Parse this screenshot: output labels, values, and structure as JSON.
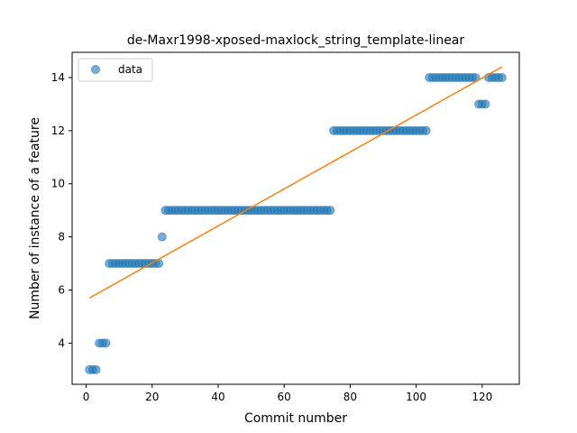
{
  "chart_data": {
    "type": "scatter",
    "title": "de-Maxr1998-xposed-maxlock_string_template-linear",
    "xlabel": "Commit number",
    "ylabel": "Number of instance of a feature",
    "xlim": [
      -4.25,
      131.25
    ],
    "ylim": [
      2.45,
      14.95
    ],
    "x_ticks": [
      0,
      20,
      40,
      60,
      80,
      100,
      120
    ],
    "y_ticks": [
      4,
      6,
      8,
      10,
      12,
      14
    ],
    "legend": {
      "placement": "top-left",
      "entries": [
        "data"
      ]
    },
    "series": [
      {
        "name": "data",
        "marker": "circle",
        "color": "#1f77b4",
        "x": [
          1,
          2,
          3,
          4,
          5,
          6,
          7,
          8,
          9,
          10,
          11,
          12,
          13,
          14,
          15,
          16,
          17,
          18,
          19,
          20,
          21,
          22,
          23,
          24,
          25,
          26,
          27,
          28,
          29,
          30,
          31,
          32,
          33,
          34,
          35,
          36,
          37,
          38,
          39,
          40,
          41,
          42,
          43,
          44,
          45,
          46,
          47,
          48,
          49,
          50,
          51,
          52,
          53,
          54,
          55,
          56,
          57,
          58,
          59,
          60,
          61,
          62,
          63,
          64,
          65,
          66,
          67,
          68,
          69,
          70,
          71,
          72,
          73,
          74,
          75,
          76,
          77,
          78,
          79,
          80,
          81,
          82,
          83,
          84,
          85,
          86,
          87,
          88,
          89,
          90,
          91,
          92,
          93,
          94,
          95,
          96,
          97,
          98,
          99,
          100,
          101,
          102,
          103,
          104,
          105,
          106,
          107,
          108,
          109,
          110,
          111,
          112,
          113,
          114,
          115,
          116,
          117,
          118,
          119,
          120,
          121,
          122,
          123,
          124,
          125,
          126
        ],
        "y": [
          3,
          3,
          3,
          4,
          4,
          4,
          7,
          7,
          7,
          7,
          7,
          7,
          7,
          7,
          7,
          7,
          7,
          7,
          7,
          7,
          7,
          7,
          8,
          9,
          9,
          9,
          9,
          9,
          9,
          9,
          9,
          9,
          9,
          9,
          9,
          9,
          9,
          9,
          9,
          9,
          9,
          9,
          9,
          9,
          9,
          9,
          9,
          9,
          9,
          9,
          9,
          9,
          9,
          9,
          9,
          9,
          9,
          9,
          9,
          9,
          9,
          9,
          9,
          9,
          9,
          9,
          9,
          9,
          9,
          9,
          9,
          9,
          9,
          9,
          12,
          12,
          12,
          12,
          12,
          12,
          12,
          12,
          12,
          12,
          12,
          12,
          12,
          12,
          12,
          12,
          12,
          12,
          12,
          12,
          12,
          12,
          12,
          12,
          12,
          12,
          12,
          12,
          12,
          14,
          14,
          14,
          14,
          14,
          14,
          14,
          14,
          14,
          14,
          14,
          14,
          14,
          14,
          14,
          13,
          13,
          13,
          14,
          14,
          14,
          14,
          14
        ]
      },
      {
        "name": "",
        "kind": "line",
        "color": "#ff7f0e",
        "x": [
          1,
          126
        ],
        "y": [
          5.7,
          14.4
        ]
      }
    ]
  }
}
